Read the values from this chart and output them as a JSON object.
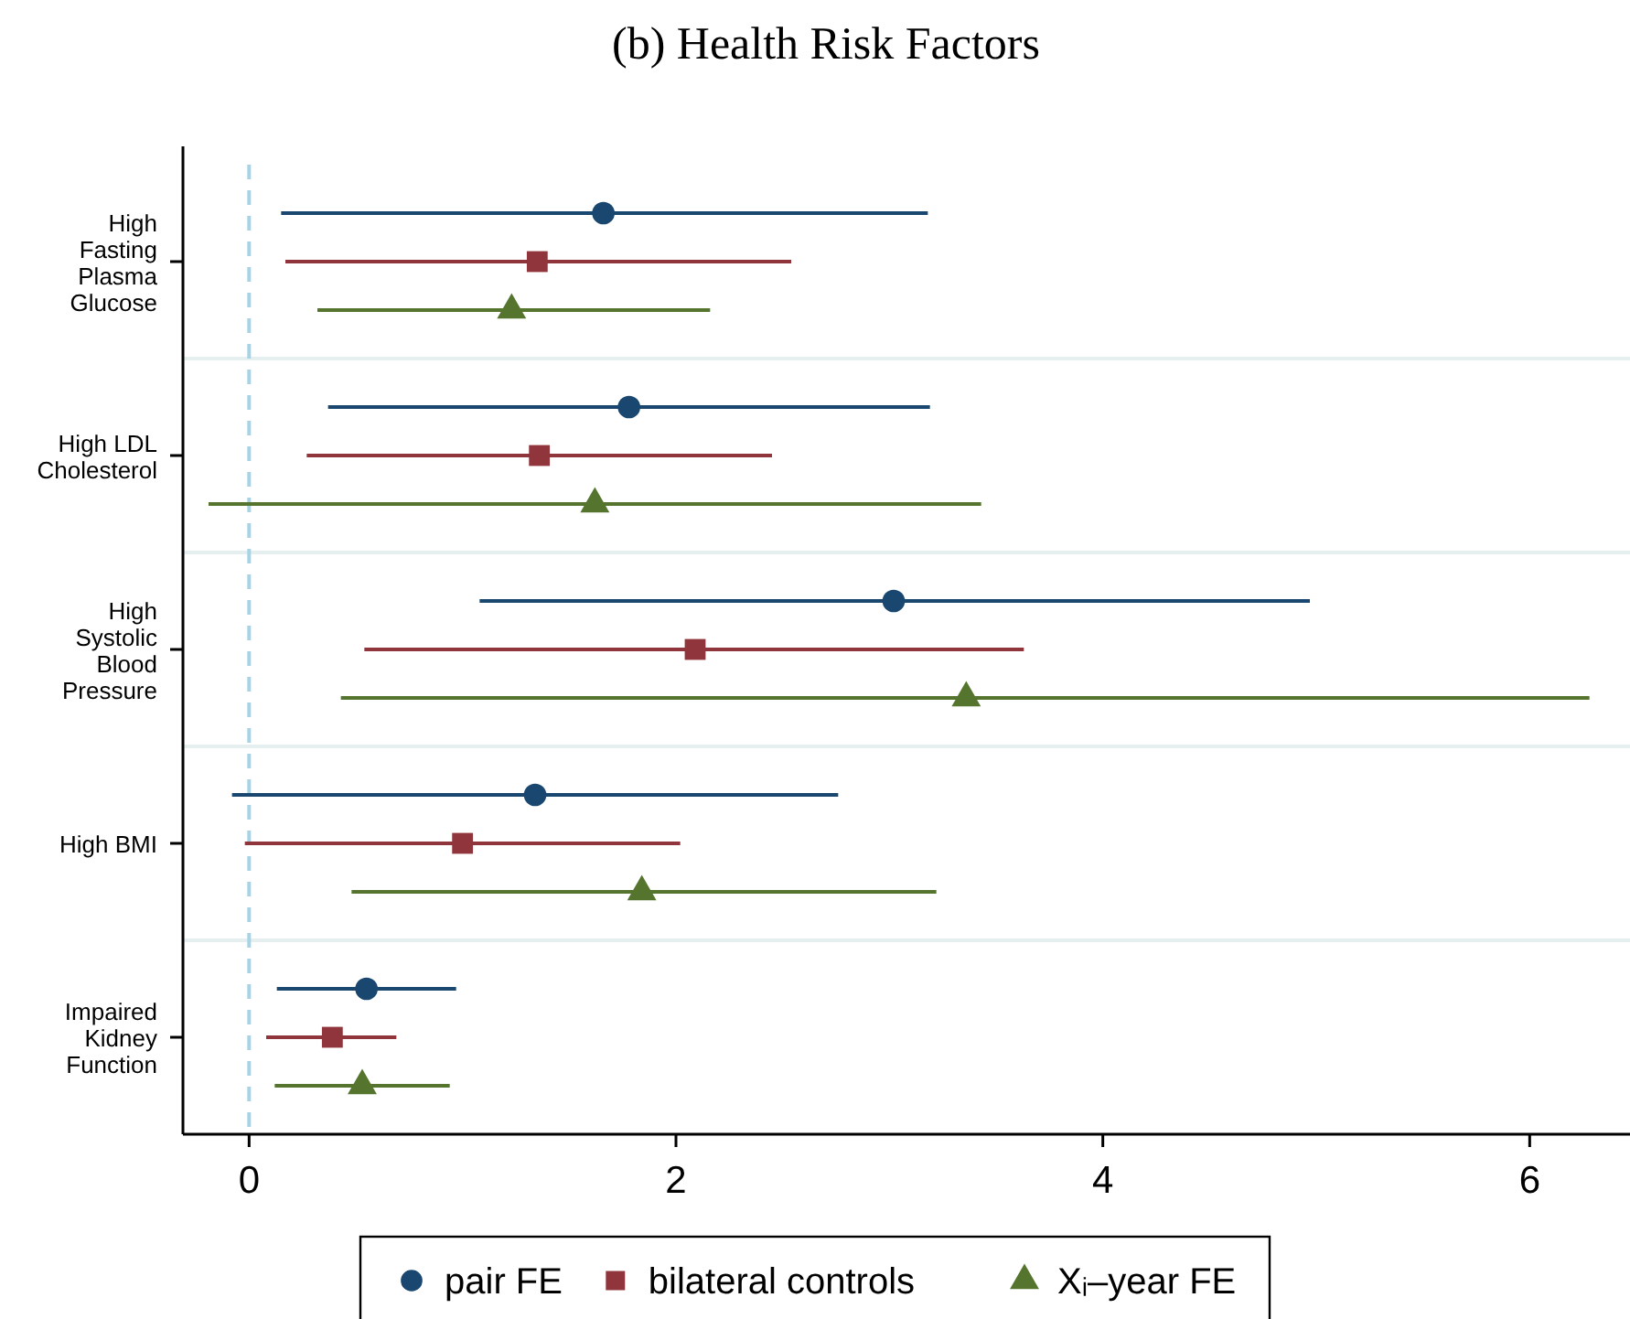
{
  "chart_data": {
    "type": "scatter",
    "orientation": "horizontal",
    "title": "(b) Health Risk Factors",
    "categories": [
      "High\nFasting\nPlasma\nGlucose",
      "High LDL\nCholesterol",
      "High\nSystolic\nBlood\nPressure",
      "High BMI",
      "Impaired\nKidney\nFunction"
    ],
    "series": [
      {
        "name": "pair FE",
        "color": "#1a476f",
        "marker": "circle",
        "values": [
          1.66,
          1.78,
          3.02,
          1.34,
          0.55
        ],
        "errors": [
          [
            0.15,
            3.18
          ],
          [
            0.37,
            3.19
          ],
          [
            1.08,
            4.97
          ],
          [
            -0.08,
            2.76
          ],
          [
            0.13,
            0.97
          ]
        ]
      },
      {
        "name": "bilateral controls",
        "color": "#90353b",
        "marker": "square",
        "values": [
          1.35,
          1.36,
          2.09,
          1.0,
          0.39
        ],
        "errors": [
          [
            0.17,
            2.54
          ],
          [
            0.27,
            2.45
          ],
          [
            0.54,
            3.63
          ],
          [
            -0.02,
            2.02
          ],
          [
            0.08,
            0.69
          ]
        ]
      },
      {
        "name": "Xᵢ–year FE",
        "color": "#55752f",
        "marker": "triangle",
        "values": [
          1.23,
          1.62,
          3.36,
          1.84,
          0.53
        ],
        "errors": [
          [
            0.32,
            2.16
          ],
          [
            -0.19,
            3.43
          ],
          [
            0.43,
            6.28
          ],
          [
            0.48,
            3.22
          ],
          [
            0.12,
            0.94
          ]
        ]
      }
    ],
    "xlim": [
      -0.31,
      6.47
    ],
    "xticks": [
      0,
      2,
      4,
      6
    ],
    "ref_lines": [
      {
        "axis": "x",
        "value": 0,
        "color": "#a6d4e6",
        "line_style": "dashed"
      }
    ],
    "grid": false,
    "legend": "bottom"
  }
}
